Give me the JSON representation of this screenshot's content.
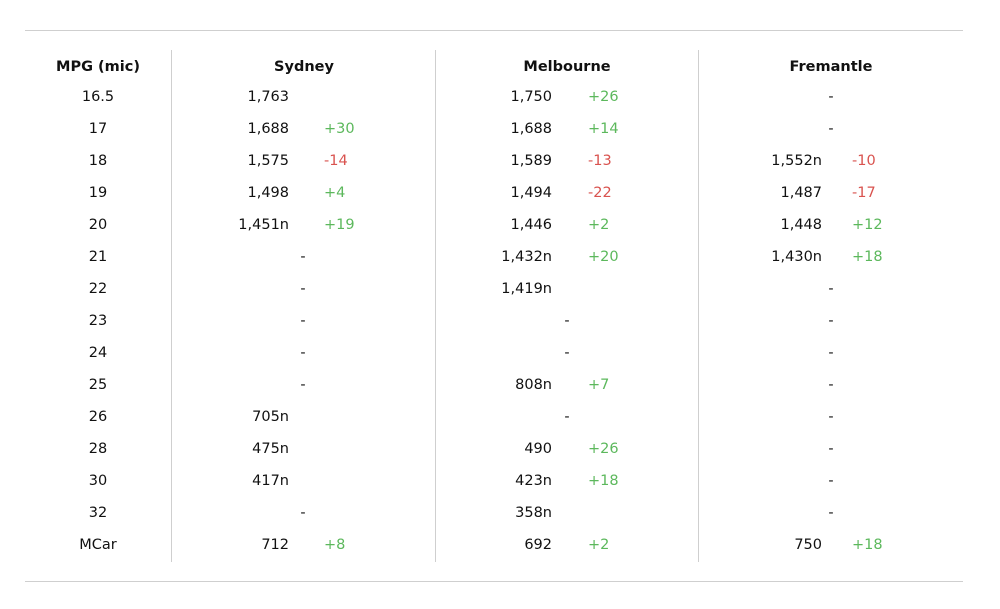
{
  "headers": {
    "label_col": "MPG (mic)",
    "cities": [
      "Sydney",
      "Melbourne",
      "Fremantle"
    ]
  },
  "colors": {
    "positive": "#5cb85c",
    "negative": "#d9534f",
    "text": "#111111",
    "rule": "#cfcfcf"
  },
  "rows": [
    {
      "label": "16.5",
      "cells": [
        {
          "value": "1,763",
          "change": ""
        },
        {
          "value": "1,750",
          "change": "+26"
        },
        {
          "value": "-",
          "change": ""
        }
      ]
    },
    {
      "label": "17",
      "cells": [
        {
          "value": "1,688",
          "change": "+30"
        },
        {
          "value": "1,688",
          "change": "+14"
        },
        {
          "value": "-",
          "change": ""
        }
      ]
    },
    {
      "label": "18",
      "cells": [
        {
          "value": "1,575",
          "change": "-14"
        },
        {
          "value": "1,589",
          "change": "-13"
        },
        {
          "value": "1,552n",
          "change": "-10"
        }
      ]
    },
    {
      "label": "19",
      "cells": [
        {
          "value": "1,498",
          "change": "+4"
        },
        {
          "value": "1,494",
          "change": "-22"
        },
        {
          "value": "1,487",
          "change": "-17"
        }
      ]
    },
    {
      "label": "20",
      "cells": [
        {
          "value": "1,451n",
          "change": "+19"
        },
        {
          "value": "1,446",
          "change": "+2"
        },
        {
          "value": "1,448",
          "change": "+12"
        }
      ]
    },
    {
      "label": "21",
      "cells": [
        {
          "value": "-",
          "change": ""
        },
        {
          "value": "1,432n",
          "change": "+20"
        },
        {
          "value": "1,430n",
          "change": "+18"
        }
      ]
    },
    {
      "label": "22",
      "cells": [
        {
          "value": "-",
          "change": ""
        },
        {
          "value": "1,419n",
          "change": ""
        },
        {
          "value": "-",
          "change": ""
        }
      ]
    },
    {
      "label": "23",
      "cells": [
        {
          "value": "-",
          "change": ""
        },
        {
          "value": "-",
          "change": ""
        },
        {
          "value": "-",
          "change": ""
        }
      ]
    },
    {
      "label": "24",
      "cells": [
        {
          "value": "-",
          "change": ""
        },
        {
          "value": "-",
          "change": ""
        },
        {
          "value": "-",
          "change": ""
        }
      ]
    },
    {
      "label": "25",
      "cells": [
        {
          "value": "-",
          "change": ""
        },
        {
          "value": "808n",
          "change": "+7"
        },
        {
          "value": "-",
          "change": ""
        }
      ]
    },
    {
      "label": "26",
      "cells": [
        {
          "value": "705n",
          "change": ""
        },
        {
          "value": "-",
          "change": ""
        },
        {
          "value": "-",
          "change": ""
        }
      ]
    },
    {
      "label": "28",
      "cells": [
        {
          "value": "475n",
          "change": ""
        },
        {
          "value": "490",
          "change": "+26"
        },
        {
          "value": "-",
          "change": ""
        }
      ]
    },
    {
      "label": "30",
      "cells": [
        {
          "value": "417n",
          "change": ""
        },
        {
          "value": "423n",
          "change": "+18"
        },
        {
          "value": "-",
          "change": ""
        }
      ]
    },
    {
      "label": "32",
      "cells": [
        {
          "value": "-",
          "change": ""
        },
        {
          "value": "358n",
          "change": ""
        },
        {
          "value": "-",
          "change": ""
        }
      ]
    },
    {
      "label": "MCar",
      "cells": [
        {
          "value": "712",
          "change": "+8"
        },
        {
          "value": "692",
          "change": "+2"
        },
        {
          "value": "750",
          "change": "+18"
        }
      ]
    }
  ]
}
